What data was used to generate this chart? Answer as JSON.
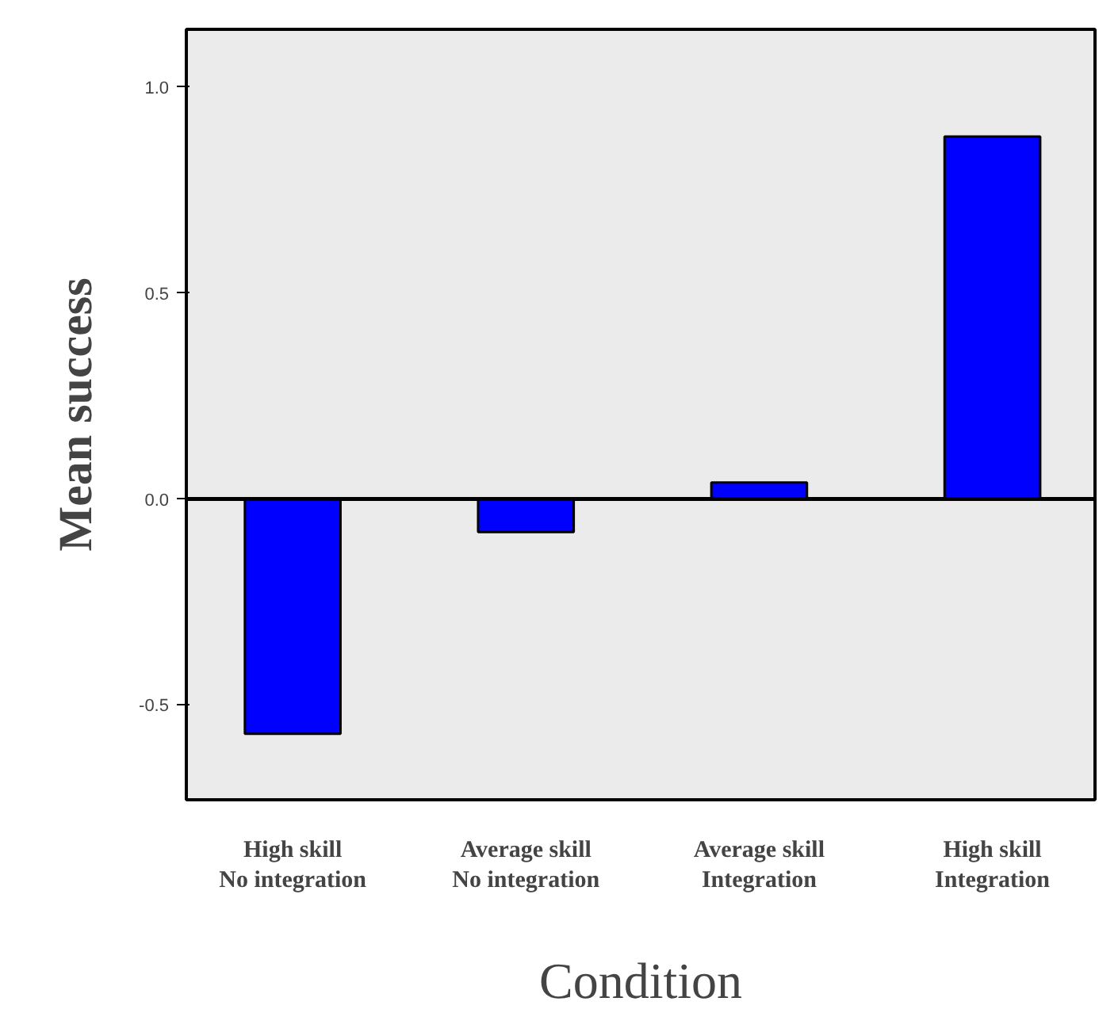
{
  "chart_data": {
    "type": "bar",
    "xlabel": "Condition",
    "ylabel": "Mean success",
    "categories": [
      "High skill\nNo integration",
      "Average skill\nNo integration",
      "Average skill\nIntegration",
      "High skill\nIntegration"
    ],
    "values": [
      -0.57,
      -0.08,
      0.04,
      0.88
    ],
    "color": "#0000ff",
    "ylim": [
      -0.73,
      1.14
    ],
    "yticks": [
      {
        "value": -0.5,
        "label": "-0.5"
      },
      {
        "value": 0,
        "label": "0.0"
      },
      {
        "value": 0.5,
        "label": "0.5"
      },
      {
        "value": 1,
        "label": "1.0"
      }
    ],
    "ref_lines": [
      {
        "axis": "y",
        "value": 0,
        "color": "#000000"
      }
    ],
    "grid": false
  }
}
